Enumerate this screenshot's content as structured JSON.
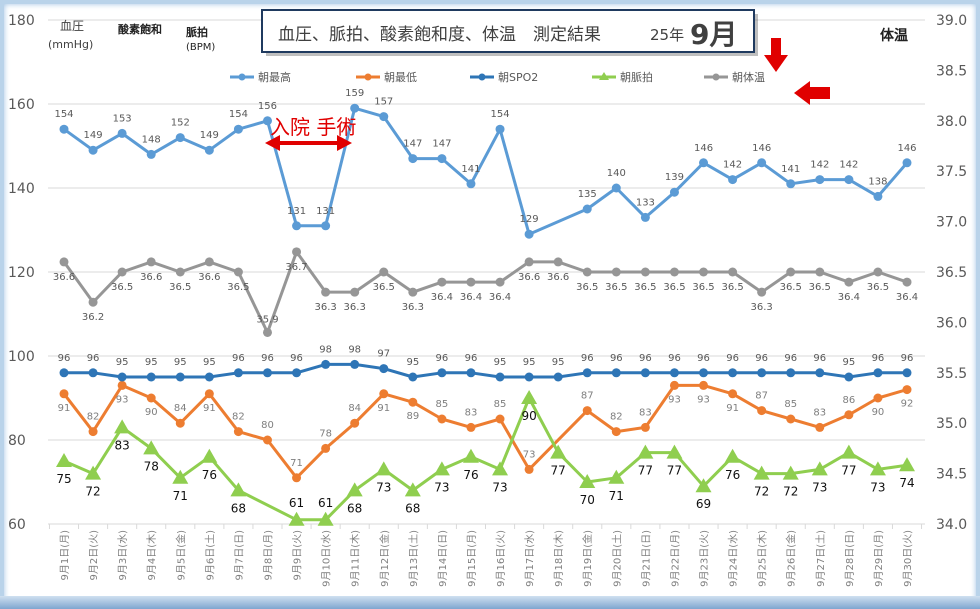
{
  "header": {
    "title_main": "血圧、脈拍、酸素飽和度、体温　測定結果",
    "title_year": "25年",
    "title_month": "9月",
    "left_label_bp": "血圧",
    "left_label_bp_unit": "(mmHg)",
    "left_label_spo2": "酸素飽和",
    "left_label_pulse": "脈拍",
    "left_label_pulse_unit": "(BPM)",
    "right_label_temp": "体温"
  },
  "annotation": {
    "text": "入院 手術",
    "color": "#e00000"
  },
  "chart_data": {
    "type": "line",
    "title": "血圧、脈拍、酸素飽和度、体温　測定結果　25年9月",
    "ylim": [
      60,
      180
    ],
    "yticks": [
      60,
      80,
      100,
      120,
      140,
      160,
      180
    ],
    "y2lim": [
      34.0,
      39.0
    ],
    "y2ticks": [
      "34.0",
      "34.5",
      "35.0",
      "35.5",
      "36.0",
      "36.5",
      "37.0",
      "37.5",
      "38.0",
      "38.5",
      "39.0"
    ],
    "legend_position": "top",
    "grid": true,
    "categories": [
      "9月1日(月)",
      "9月2日(火)",
      "9月3日(水)",
      "9月4日(木)",
      "9月5日(金)",
      "9月6日(土)",
      "9月7日(日)",
      "9月8日(月)",
      "9月9日(火)",
      "9月10日(水)",
      "9月11日(木)",
      "9月12日(金)",
      "9月13日(土)",
      "9月14日(日)",
      "9月15日(月)",
      "9月16日(火)",
      "9月17日(水)",
      "9月18日(木)",
      "9月19日(金)",
      "9月20日(土)",
      "9月21日(日)",
      "9月22日(月)",
      "9月23日(火)",
      "9月24日(水)",
      "9月25日(木)",
      "9月26日(金)",
      "9月27日(土)",
      "9月28日(日)",
      "9月29日(月)",
      "9月30日(火)"
    ],
    "series": [
      {
        "name": "朝最高",
        "color": "#5b9bd5",
        "axis": "left",
        "marker": "circle",
        "values": [
          154,
          149,
          153,
          148,
          152,
          149,
          154,
          156,
          131,
          131,
          159,
          157,
          147,
          147,
          141,
          154,
          129,
          null,
          135,
          140,
          133,
          139,
          146,
          142,
          146,
          141,
          142,
          142,
          138,
          146
        ]
      },
      {
        "name": "朝最低",
        "color": "#ed7d31",
        "axis": "left",
        "marker": "circle",
        "values": [
          91,
          82,
          93,
          90,
          84,
          91,
          82,
          80,
          71,
          78,
          84,
          91,
          89,
          85,
          83,
          85,
          73,
          null,
          87,
          82,
          83,
          93,
          93,
          91,
          87,
          85,
          83,
          86,
          90,
          92
        ]
      },
      {
        "name": "朝SPO2",
        "color": "#2e75b6",
        "axis": "left",
        "marker": "circle",
        "values": [
          96,
          96,
          95,
          95,
          95,
          95,
          96,
          96,
          96,
          98,
          98,
          97,
          95,
          96,
          96,
          95,
          95,
          95,
          96,
          96,
          96,
          96,
          96,
          96,
          96,
          96,
          96,
          95,
          96,
          96
        ]
      },
      {
        "name": "朝脈拍",
        "color": "#8fce4f",
        "axis": "left",
        "marker": "triangle",
        "values": [
          75,
          72,
          83,
          78,
          71,
          76,
          68,
          null,
          61,
          61,
          68,
          73,
          68,
          73,
          76,
          73,
          90,
          77,
          70,
          71,
          77,
          77,
          69,
          76,
          72,
          72,
          73,
          77,
          73,
          74
        ]
      },
      {
        "name": "朝体温",
        "color": "#969696",
        "axis": "right",
        "marker": "circle",
        "values": [
          36.6,
          36.2,
          36.5,
          36.6,
          36.5,
          36.6,
          36.5,
          35.9,
          36.7,
          36.3,
          36.3,
          36.5,
          36.3,
          36.4,
          36.4,
          36.4,
          36.6,
          36.6,
          36.5,
          36.5,
          36.5,
          36.5,
          36.5,
          36.5,
          36.3,
          36.5,
          36.5,
          36.4,
          36.5,
          36.4
        ]
      }
    ]
  }
}
